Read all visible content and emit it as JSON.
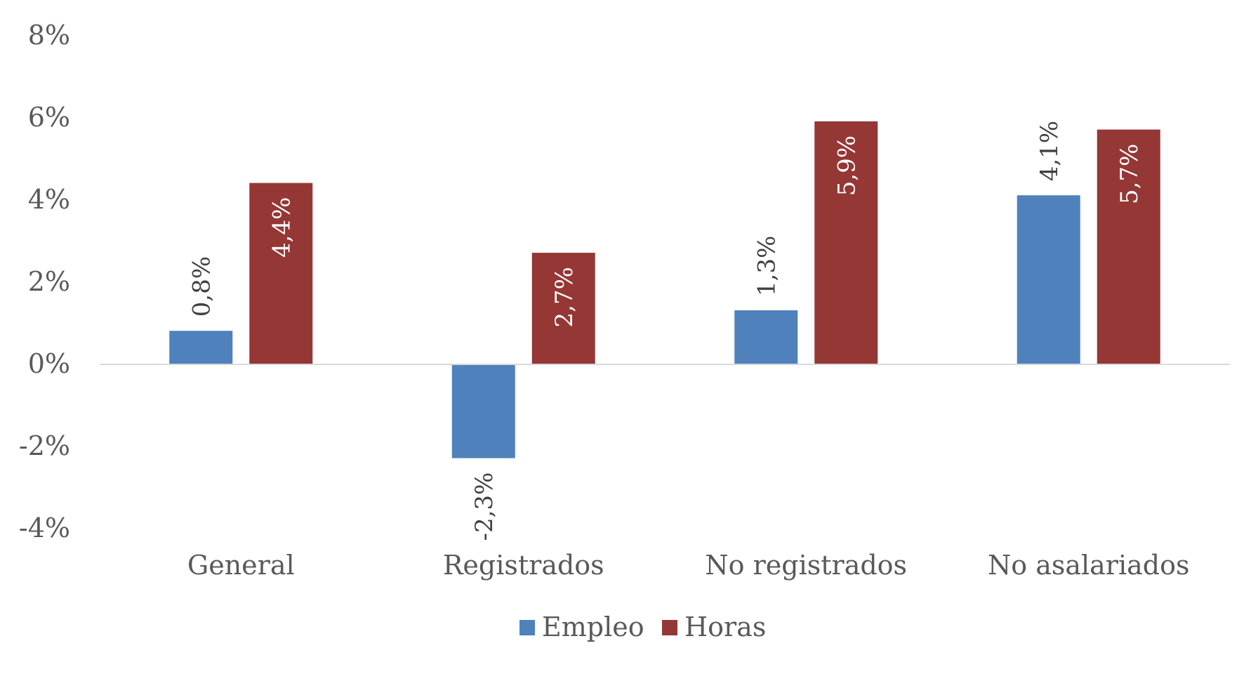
{
  "chart_data": {
    "type": "bar",
    "categories": [
      "General",
      "Registrados",
      "No registrados",
      "No asalariados"
    ],
    "series": [
      {
        "name": "Empleo",
        "values": [
          0.8,
          -2.3,
          1.3,
          4.1
        ],
        "labels": [
          "0,8%",
          "-2,3%",
          "1,3%",
          "4,1%"
        ],
        "color": "#4F81BD"
      },
      {
        "name": "Horas",
        "values": [
          4.4,
          2.7,
          5.9,
          5.7
        ],
        "labels": [
          "4,4%",
          "2,7%",
          "5,9%",
          "5,7%"
        ],
        "color": "#953735"
      }
    ],
    "ylim": [
      -4,
      8
    ],
    "yticks": [
      -4,
      -2,
      0,
      2,
      4,
      6,
      8
    ],
    "ytick_labels": [
      "-4%",
      "-2%",
      "0%",
      "2%",
      "4%",
      "6%",
      "8%"
    ],
    "title": "",
    "xlabel": "",
    "ylabel": "",
    "grid": false,
    "legend_position": "bottom",
    "text_color": "#595959",
    "axis_color": "#D9D9D9"
  }
}
